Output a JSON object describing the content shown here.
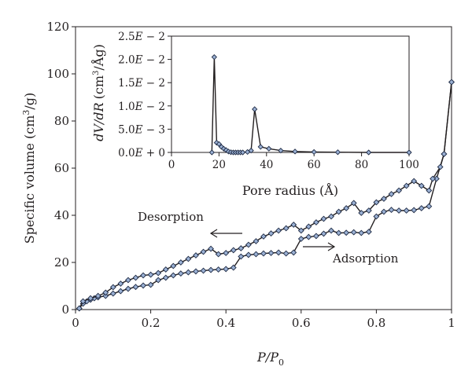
{
  "chart_data": [
    {
      "type": "line",
      "x_axis": {
        "label_parts": [
          "P/P",
          "0"
        ],
        "range": [
          0,
          1
        ],
        "ticks": [
          0,
          0.2,
          0.4,
          0.6,
          0.8,
          1
        ],
        "tick_labels": [
          "0",
          "0.2",
          "0.4",
          "0.6",
          "0.8",
          "1"
        ]
      },
      "y_axis": {
        "label_parts": [
          "Specific volume (cm",
          "3",
          "/g)"
        ],
        "range": [
          0,
          120
        ],
        "ticks": [
          0,
          20,
          40,
          60,
          80,
          100,
          120
        ],
        "tick_labels": [
          "0",
          "20",
          "40",
          "60",
          "80",
          "100",
          "120"
        ]
      },
      "grid": false,
      "annotations": [
        {
          "text": "Desorption",
          "arrow": "left"
        },
        {
          "text": "Adsorption",
          "arrow": "right"
        }
      ],
      "series": [
        {
          "points": [
            [
              0.01,
              0.5
            ],
            [
              0.02,
              2.5
            ],
            [
              0.03,
              3.5
            ],
            [
              0.04,
              4.2
            ],
            [
              0.05,
              4.8
            ],
            [
              0.06,
              5.2
            ],
            [
              0.08,
              5.8
            ],
            [
              0.1,
              6.8
            ],
            [
              0.12,
              7.8
            ],
            [
              0.14,
              8.8
            ],
            [
              0.16,
              9.6
            ],
            [
              0.18,
              10.2
            ],
            [
              0.2,
              10.5
            ],
            [
              0.22,
              12.5
            ],
            [
              0.24,
              13.5
            ],
            [
              0.26,
              14.5
            ],
            [
              0.28,
              15.3
            ],
            [
              0.3,
              15.8
            ],
            [
              0.32,
              16.2
            ],
            [
              0.34,
              16.5
            ],
            [
              0.36,
              16.8
            ],
            [
              0.38,
              17.0
            ],
            [
              0.4,
              17.2
            ],
            [
              0.42,
              17.8
            ],
            [
              0.44,
              22.5
            ],
            [
              0.46,
              23.2
            ],
            [
              0.48,
              23.5
            ],
            [
              0.5,
              23.8
            ],
            [
              0.52,
              24.0
            ],
            [
              0.54,
              24.2
            ],
            [
              0.56,
              23.8
            ],
            [
              0.58,
              24.2
            ],
            [
              0.6,
              30.0
            ],
            [
              0.62,
              30.8
            ],
            [
              0.64,
              31.2
            ],
            [
              0.66,
              32.2
            ],
            [
              0.68,
              33.5
            ],
            [
              0.7,
              32.5
            ],
            [
              0.72,
              32.6
            ],
            [
              0.74,
              32.8
            ],
            [
              0.76,
              32.5
            ],
            [
              0.78,
              33.0
            ],
            [
              0.8,
              39.5
            ],
            [
              0.82,
              41.5
            ],
            [
              0.84,
              42.3
            ],
            [
              0.86,
              42.0
            ],
            [
              0.88,
              42.0
            ],
            [
              0.9,
              42.2
            ],
            [
              0.92,
              43.0
            ],
            [
              0.94,
              43.8
            ],
            [
              0.96,
              55.5
            ],
            [
              0.98,
              66.0
            ],
            [
              1.0,
              96.5
            ]
          ]
        },
        {
          "points": [
            [
              1.0,
              96.5
            ],
            [
              0.98,
              66.0
            ],
            [
              0.97,
              60.5
            ],
            [
              0.95,
              55.5
            ],
            [
              0.94,
              50.5
            ],
            [
              0.92,
              52.5
            ],
            [
              0.9,
              54.5
            ],
            [
              0.88,
              52.5
            ],
            [
              0.86,
              50.5
            ],
            [
              0.84,
              49.0
            ],
            [
              0.82,
              47.0
            ],
            [
              0.8,
              45.5
            ],
            [
              0.78,
              42.0
            ],
            [
              0.76,
              41.0
            ],
            [
              0.74,
              45.2
            ],
            [
              0.72,
              43.0
            ],
            [
              0.7,
              41.5
            ],
            [
              0.68,
              39.5
            ],
            [
              0.66,
              38.5
            ],
            [
              0.64,
              37.0
            ],
            [
              0.62,
              35.2
            ],
            [
              0.6,
              33.5
            ],
            [
              0.58,
              36.0
            ],
            [
              0.56,
              34.5
            ],
            [
              0.54,
              33.5
            ],
            [
              0.52,
              32.3
            ],
            [
              0.5,
              31.0
            ],
            [
              0.48,
              29.0
            ],
            [
              0.46,
              27.5
            ],
            [
              0.44,
              26.0
            ],
            [
              0.42,
              25.2
            ],
            [
              0.4,
              24.0
            ],
            [
              0.38,
              23.5
            ],
            [
              0.36,
              25.8
            ],
            [
              0.34,
              24.5
            ],
            [
              0.32,
              23.0
            ],
            [
              0.3,
              21.5
            ],
            [
              0.28,
              20.0
            ],
            [
              0.26,
              18.5
            ],
            [
              0.24,
              17.0
            ],
            [
              0.22,
              15.5
            ],
            [
              0.2,
              14.8
            ],
            [
              0.18,
              14.5
            ],
            [
              0.16,
              13.5
            ],
            [
              0.14,
              12.5
            ],
            [
              0.12,
              11.0
            ],
            [
              0.1,
              9.5
            ],
            [
              0.08,
              7.2
            ],
            [
              0.06,
              5.8
            ],
            [
              0.04,
              4.8
            ],
            [
              0.02,
              3.5
            ],
            [
              0.01,
              0.5
            ]
          ]
        }
      ]
    },
    {
      "type": "line",
      "x_axis": {
        "label": "Pore radius (Å)",
        "range": [
          0,
          100
        ],
        "ticks": [
          0,
          20,
          40,
          60,
          80,
          100
        ],
        "tick_labels": [
          "0",
          "20",
          "40",
          "60",
          "80",
          "100"
        ]
      },
      "y_axis": {
        "label_parts": [
          "dV/dR",
          "(cm",
          "3",
          "/Åg)"
        ],
        "range": [
          0,
          0.025
        ],
        "ticks": [
          0,
          0.005,
          0.01,
          0.015,
          0.02,
          0.025
        ],
        "tick_labels": [
          "0.0E + 0",
          "5.0E − 3",
          "1.0E − 2",
          "1.5E − 2",
          "2.0E − 2",
          "2.5E − 2"
        ]
      },
      "grid": false,
      "series": [
        {
          "points": [
            [
              17,
              0.0
            ],
            [
              18,
              0.0205
            ],
            [
              19,
              0.0021
            ],
            [
              20,
              0.0018
            ],
            [
              21,
              0.0012
            ],
            [
              22,
              0.0008
            ],
            [
              23,
              0.0005
            ],
            [
              24,
              0.0002
            ],
            [
              25,
              5e-05
            ],
            [
              26,
              0.0
            ],
            [
              27,
              0.0
            ],
            [
              28,
              0.0
            ],
            [
              29,
              0.0
            ],
            [
              30,
              0.0
            ],
            [
              32,
              0.0001
            ],
            [
              33.5,
              0.0004
            ],
            [
              35,
              0.0093
            ],
            [
              37.5,
              0.0012
            ],
            [
              41,
              0.0008
            ],
            [
              46,
              0.0004
            ],
            [
              52,
              0.0002
            ],
            [
              60,
              0.0001
            ],
            [
              70,
              5e-05
            ],
            [
              83,
              0.0
            ],
            [
              100,
              0.0
            ]
          ]
        }
      ]
    }
  ]
}
